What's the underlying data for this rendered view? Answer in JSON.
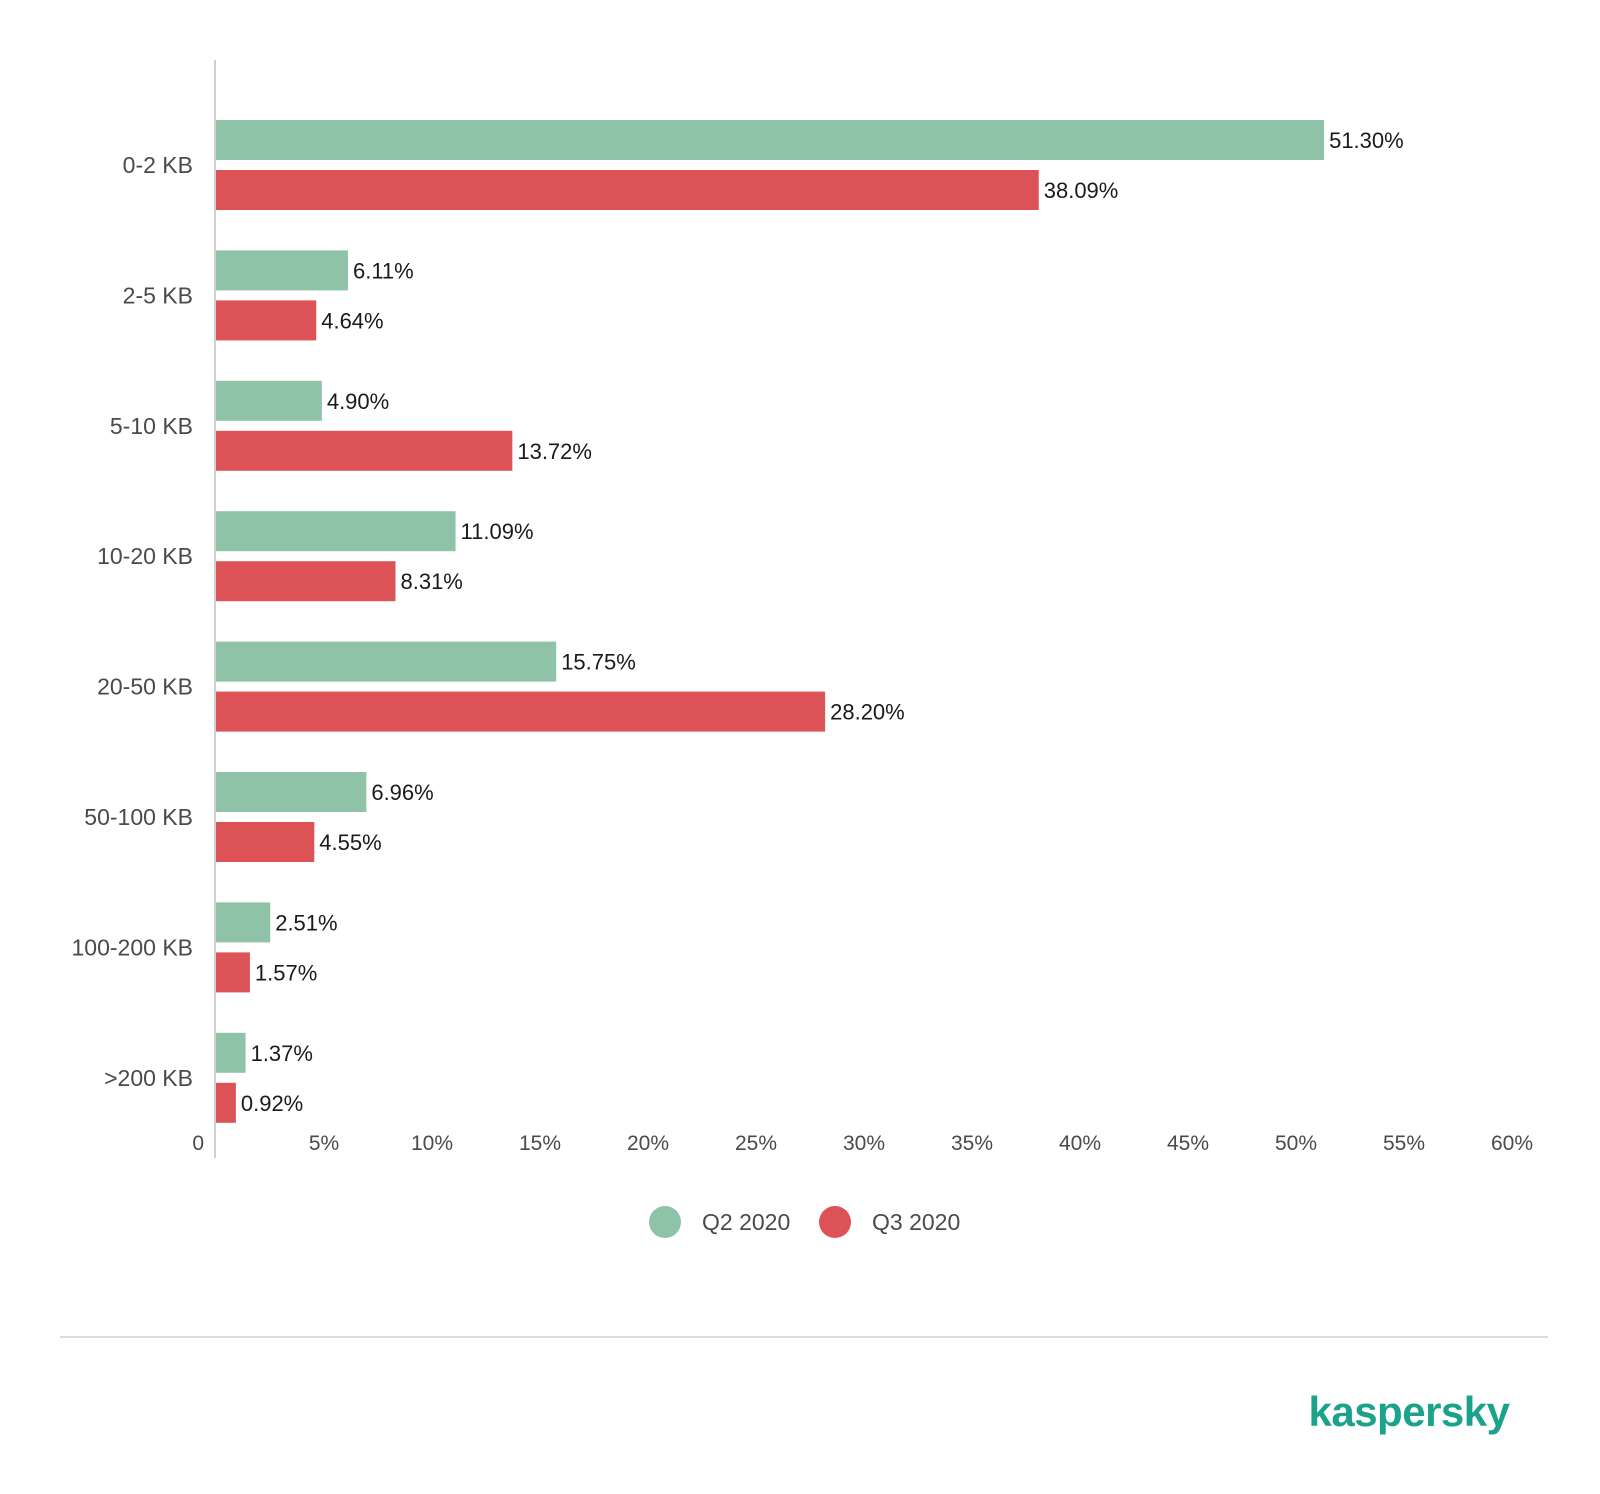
{
  "chart_data": {
    "type": "bar",
    "orientation": "horizontal",
    "categories": [
      "0-2 KB",
      "2-5 KB",
      "5-10 KB",
      "10-20 KB",
      "20-50 KB",
      "50-100 KB",
      "100-200 KB",
      ">200 KB"
    ],
    "series": [
      {
        "name": "Q2 2020",
        "color": "#8ec3a7",
        "values": [
          51.3,
          6.11,
          4.9,
          11.09,
          15.75,
          6.96,
          2.51,
          1.37
        ],
        "labels": [
          "51.30%",
          "6.11%",
          "4.90%",
          "11.09%",
          "15.75%",
          "6.96%",
          "2.51%",
          "1.37%"
        ]
      },
      {
        "name": "Q3 2020",
        "color": "#dc5257",
        "values": [
          38.09,
          4.64,
          13.72,
          8.31,
          28.2,
          4.55,
          1.57,
          0.92
        ],
        "labels": [
          "38.09%",
          "4.64%",
          "13.72%",
          "8.31%",
          "28.20%",
          "4.55%",
          "1.57%",
          "0.92%"
        ]
      }
    ],
    "xlim": [
      0,
      60
    ],
    "xticks": [
      "0",
      "5%",
      "10%",
      "15%",
      "20%",
      "25%",
      "30%",
      "35%",
      "40%",
      "45%",
      "50%",
      "55%",
      "60%"
    ],
    "xtick_values": [
      0,
      5,
      10,
      15,
      20,
      25,
      30,
      35,
      40,
      45,
      50,
      55,
      60
    ],
    "grid": false,
    "legend": "bottom-center",
    "title": "",
    "xlabel": "",
    "ylabel": ""
  },
  "brand": {
    "logo_text": "kaspersky",
    "color": "#1aa38a"
  }
}
